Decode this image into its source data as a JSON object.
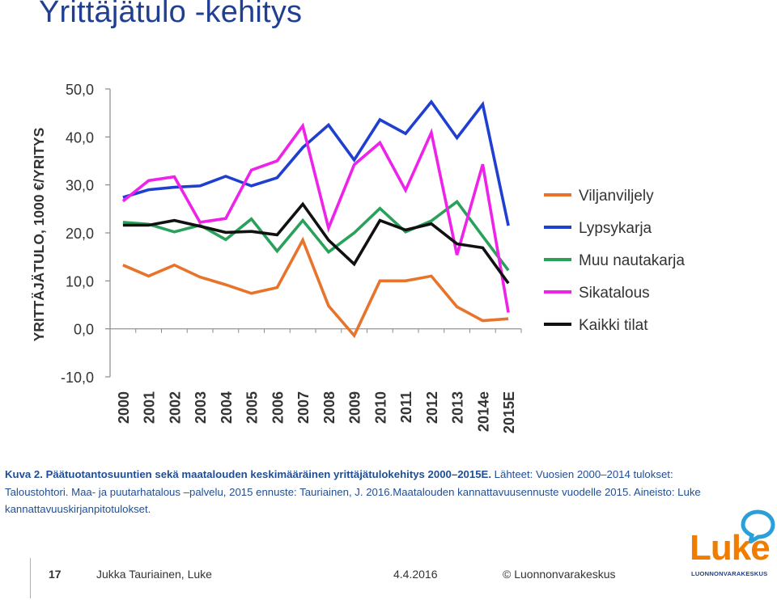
{
  "slide": {
    "title": "Yrittäjätulo -kehitys",
    "caption_bold": "Kuva 2. Päätuotantosuuntien sekä maatalouden keskimääräinen yrittäjätulokehitys 2000–2015E.",
    "caption_rest": " Lähteet: Vuosien 2000–2014 tulokset: Taloustohtori. Maa- ja puutarhatalous –palvelu, 2015 ennuste: Tauriainen, J. 2016.Maatalouden kannattavuusennuste vuodelle 2015. Aineisto: Luke kannattavuuskirjanpitotulokset."
  },
  "footer": {
    "page_number": "17",
    "author": "Jukka Tauriainen, Luke",
    "date": "4.4.2016",
    "copyright": "© Luonnonvarakeskus"
  },
  "logo": {
    "word": "Luke",
    "subtitle": "LUONNONVARAKESKUS",
    "word_color": "#f07d00",
    "bubble_color": "#2a9fd8",
    "subtitle_color": "#1f3f93"
  },
  "chart_data": {
    "type": "line",
    "ylabel": "YRITTÄJÄTULO, 1000 €/YRITYS",
    "xlabel": "",
    "ylim": [
      -10,
      50
    ],
    "yticks": [
      "50,0",
      "40,0",
      "30,0",
      "20,0",
      "10,0",
      "0,0",
      "-10,0"
    ],
    "ytick_values": [
      50,
      40,
      30,
      20,
      10,
      0,
      -10
    ],
    "categories": [
      "2000",
      "2001",
      "2002",
      "2003",
      "2004",
      "2005",
      "2006",
      "2007",
      "2008",
      "2009",
      "2010",
      "2011",
      "2012",
      "2013",
      "2014e",
      "2015E"
    ],
    "grid": false,
    "legend_position": "right",
    "series": [
      {
        "name": "Viljanviljely",
        "color": "#e8732a",
        "values": [
          13.3,
          11.0,
          13.3,
          10.8,
          9.2,
          7.4,
          8.6,
          18.5,
          4.8,
          -1.4,
          10.0,
          10.0,
          11.0,
          4.6,
          1.7,
          2.1
        ]
      },
      {
        "name": "Lypsykarja",
        "color": "#1f3fd0",
        "values": [
          27.4,
          29.0,
          29.5,
          29.8,
          31.8,
          29.8,
          31.5,
          37.8,
          42.5,
          35.2,
          43.6,
          40.7,
          47.3,
          39.8,
          46.8,
          21.5
        ]
      },
      {
        "name": "Muu nautakarja",
        "color": "#2aa15a",
        "values": [
          22.2,
          21.8,
          20.2,
          21.6,
          18.6,
          22.9,
          16.2,
          22.6,
          16.0,
          20.0,
          25.1,
          20.2,
          22.5,
          26.5,
          19.3,
          12.2
        ]
      },
      {
        "name": "Sikatalous",
        "color": "#ee22e8",
        "values": [
          26.6,
          30.9,
          31.7,
          22.2,
          23.0,
          33.1,
          35.0,
          42.3,
          21.0,
          34.2,
          38.8,
          28.9,
          40.9,
          15.4,
          34.3,
          3.4
        ]
      },
      {
        "name": "Kaikki tilat",
        "color": "#111111",
        "values": [
          21.6,
          21.6,
          22.6,
          21.4,
          20.1,
          20.3,
          19.6,
          26.0,
          18.5,
          13.5,
          22.6,
          20.6,
          21.9,
          17.7,
          16.9,
          9.5
        ]
      }
    ]
  }
}
